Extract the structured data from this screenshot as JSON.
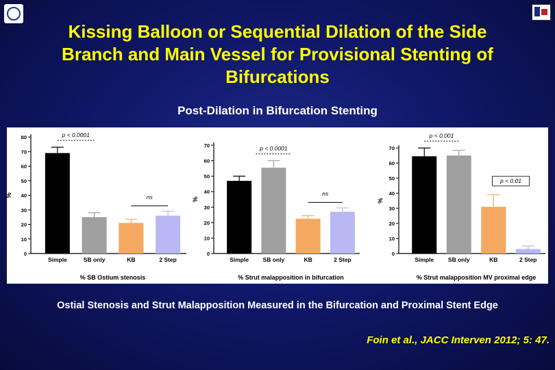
{
  "slide": {
    "title_lines": [
      "Kissing Balloon or Sequential Dilation of the Side",
      "Branch and Main Vessel for Provisional Stenting of",
      "Bifurcations"
    ],
    "subtitle": "Post-Dilation in Bifurcation Stenting",
    "caption": "Ostial Stenosis and Strut Malapposition Measured in the Bifurcation and Proximal Stent  Edge",
    "citation": "Foin et al., JACC Interven 2012; 5: 47.",
    "logos": [
      "institution-seal-icon",
      "heart-logo-icon"
    ]
  },
  "chart_data": [
    {
      "type": "bar",
      "categories": [
        "Simple",
        "SB only",
        "KB",
        "2 Step"
      ],
      "values": [
        69,
        25,
        21,
        26
      ],
      "errors": [
        4,
        3,
        2.5,
        3
      ],
      "colors": [
        "#000000",
        "#a0a0a0",
        "#f5a860",
        "#b8b8f4"
      ],
      "ylabel": "%",
      "xlabel": "% SB Ostium stenosis",
      "ylim": [
        0,
        80
      ],
      "yticks": [
        0,
        10,
        20,
        30,
        40,
        50,
        60,
        70,
        80
      ],
      "annotations": [
        {
          "text": "p < 0.0001",
          "from": 0,
          "to": 1,
          "style": "dashed"
        },
        {
          "text": "ns",
          "from": 2,
          "to": 3,
          "style": "solid"
        }
      ]
    },
    {
      "type": "bar",
      "categories": [
        "Simple",
        "SB only",
        "KB",
        "2 Step"
      ],
      "values": [
        47,
        55.5,
        22.5,
        27
      ],
      "errors": [
        3,
        4.5,
        2,
        2.5
      ],
      "colors": [
        "#000000",
        "#a0a0a0",
        "#f5a860",
        "#b8b8f4"
      ],
      "ylabel": "%",
      "xlabel": "% Strut malapposition in bifurcation",
      "ylim": [
        0,
        70
      ],
      "yticks": [
        0,
        10,
        20,
        30,
        40,
        50,
        60,
        70
      ],
      "annotations": [
        {
          "text": "p < 0.0001",
          "from": 1,
          "to": 1,
          "style": "dashed"
        },
        {
          "text": "ns",
          "from": 2,
          "to": 3,
          "style": "solid"
        }
      ]
    },
    {
      "type": "bar",
      "categories": [
        "Simple",
        "SB only",
        "KB",
        "2 Step"
      ],
      "values": [
        64.5,
        65,
        31,
        3
      ],
      "errors": [
        5.5,
        3.5,
        8,
        2
      ],
      "colors": [
        "#000000",
        "#a0a0a0",
        "#f5a860",
        "#b8b8f4"
      ],
      "ylabel": "%",
      "xlabel": "% Strut malapposition MV proximal edge",
      "ylim": [
        0,
        70
      ],
      "yticks": [
        0,
        10,
        20,
        30,
        40,
        50,
        60,
        70
      ],
      "annotations": [
        {
          "text": "p < 0.001",
          "from": 0,
          "to": 1,
          "style": "dashed"
        },
        {
          "text": "p < 0.01",
          "from": 2,
          "to": 3,
          "style": "boxed"
        }
      ]
    }
  ]
}
